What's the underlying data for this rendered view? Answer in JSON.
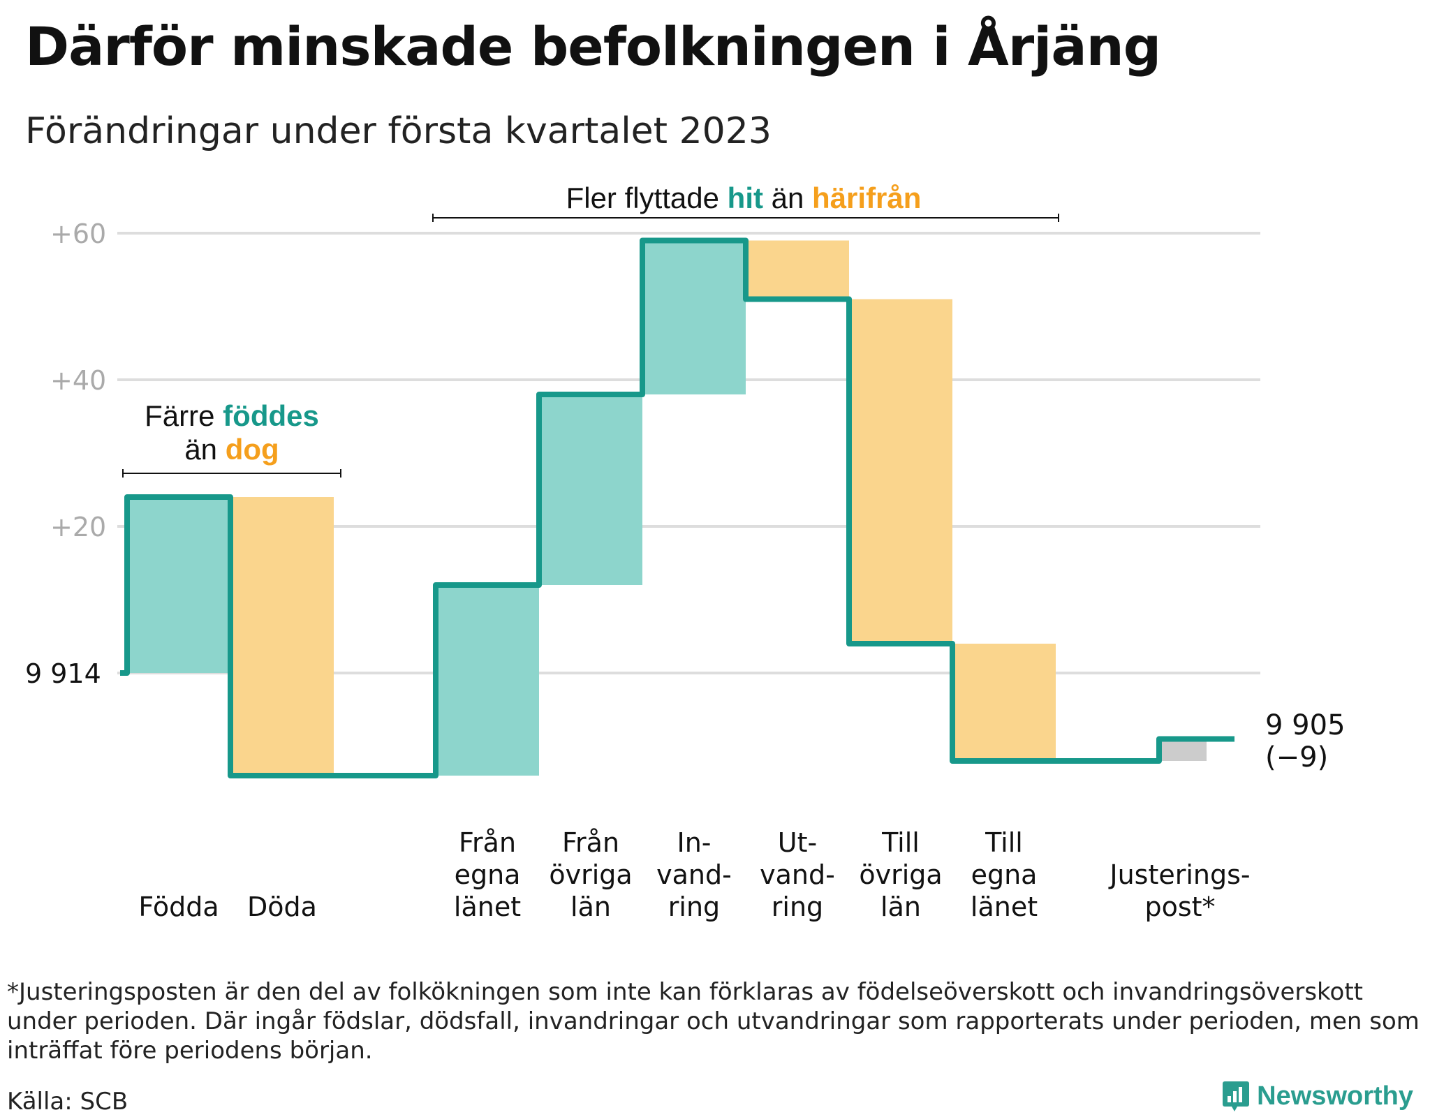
{
  "title": "Därför minskade befolkningen i Årjäng",
  "subtitle": "Förändringar under första kvartalet 2023",
  "chart_data": {
    "type": "waterfall",
    "start_value": 9914,
    "start_label": "9 914",
    "end_label": "9 905",
    "end_change_label": "(−9)",
    "y_axis": {
      "min": -16,
      "max": 62,
      "ticks": [
        {
          "value": 20,
          "label": "+20"
        },
        {
          "value": 40,
          "label": "+40"
        },
        {
          "value": 60,
          "label": "+60"
        }
      ],
      "grid": true
    },
    "steps": [
      {
        "label_lines": [
          "Födda"
        ],
        "change": 24,
        "kind": "increase"
      },
      {
        "label_lines": [
          "Döda"
        ],
        "change": -38,
        "kind": "decrease"
      },
      {
        "label_lines": [
          "Från",
          "egna",
          "länet"
        ],
        "change": 26,
        "kind": "increase"
      },
      {
        "label_lines": [
          "Från",
          "övriga",
          "län"
        ],
        "change": 26,
        "kind": "increase"
      },
      {
        "label_lines": [
          "In-",
          "vand-",
          "ring"
        ],
        "change": 21,
        "kind": "increase"
      },
      {
        "label_lines": [
          "Ut-",
          "vand-",
          "ring"
        ],
        "change": -8,
        "kind": "decrease"
      },
      {
        "label_lines": [
          "Till",
          "övriga",
          "län"
        ],
        "change": -47,
        "kind": "decrease"
      },
      {
        "label_lines": [
          "Till",
          "egna",
          "länet"
        ],
        "change": -16,
        "kind": "decrease"
      },
      {
        "label_lines": [
          "Justerings-",
          "post*"
        ],
        "change": 3,
        "kind": "adjustment"
      }
    ],
    "annotations": [
      {
        "id": "births",
        "parts": [
          {
            "text": "Färre ",
            "role": "plain"
          },
          {
            "text": "föddes",
            "role": "increase"
          }
        ],
        "parts2": [
          {
            "text": "än ",
            "role": "plain"
          },
          {
            "text": "dog",
            "role": "decrease"
          }
        ]
      },
      {
        "id": "migration",
        "parts": [
          {
            "text": "Fler flyttade ",
            "role": "plain"
          },
          {
            "text": "hit",
            "role": "increase"
          },
          {
            "text": " än ",
            "role": "plain"
          },
          {
            "text": "härifrån",
            "role": "decrease"
          }
        ]
      }
    ],
    "colors": {
      "increase_fill": "#8dd5cc",
      "decrease_fill": "#fad58d",
      "adjustment_fill": "#cccccc",
      "line": "#17988a",
      "increase_text": "#17988a",
      "decrease_text": "#f59f1c",
      "grid": "#dddddd",
      "tick_text": "#aaaaaa"
    }
  },
  "footnote": "*Justeringsposten är den del av folkökningen som inte kan förklaras av födelseöverskott och invandringsöverskott under perioden. Där ingår födslar, dödsfall, invandringar och utvandringar som rapporterats under perioden, men som inträffat före periodens början.",
  "source": "Källa: SCB",
  "brand": "Newsworthy",
  "icons": {
    "brand_logo": "newsworthy-logo-icon"
  }
}
